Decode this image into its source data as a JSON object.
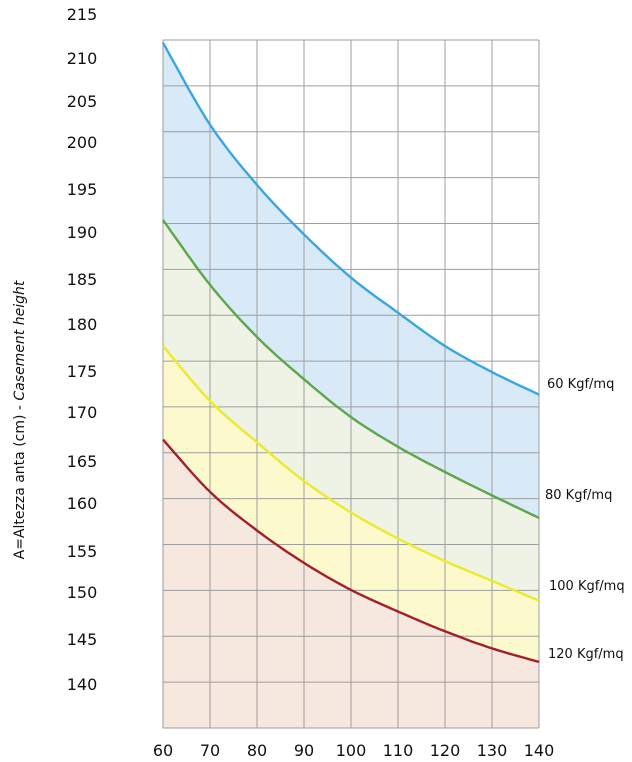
{
  "chart_data": {
    "type": "area",
    "title": "",
    "xlabel": "",
    "ylabel": {
      "main": "A=Altezza anta (cm) - ",
      "italic": "Casement height"
    },
    "xlim": [
      60,
      140
    ],
    "ylim": [
      215,
      130
    ],
    "x_ticks": [
      "60",
      "70",
      "80",
      "90",
      "100",
      "110",
      "120",
      "130",
      "140"
    ],
    "y_ticks": [
      "215",
      "210",
      "205",
      "200",
      "195",
      "190",
      "185",
      "180",
      "175",
      "170",
      "165",
      "160",
      "155",
      "150",
      "145",
      "140"
    ],
    "grid": true,
    "x": [
      60,
      70,
      80,
      90,
      100,
      110,
      120,
      130,
      140
    ],
    "series": [
      {
        "name": "60 Kgf/mq",
        "line_color": "#3aa6e0",
        "fill_color": "#d8e9f8",
        "values": [
          212.2,
          203.1,
          196.4,
          190.9,
          186.1,
          182.2,
          178.5,
          175.6,
          173.1
        ]
      },
      {
        "name": "80 Kgf/mq",
        "line_color": "#5ea64a",
        "fill_color": "#eef3e6",
        "values": [
          192.5,
          185.3,
          179.5,
          174.8,
          170.6,
          167.3,
          164.5,
          161.9,
          159.4
        ]
      },
      {
        "name": "100 Kgf/mq",
        "line_color": "#ecea2a",
        "fill_color": "#fcfacd",
        "values": [
          178.5,
          172.4,
          167.8,
          163.5,
          160.0,
          157.1,
          154.6,
          152.4,
          150.2
        ]
      },
      {
        "name": "120 Kgf/mq",
        "line_color": "#a31f2c",
        "fill_color": "#f6e7df",
        "values": [
          168.1,
          162.3,
          158.0,
          154.4,
          151.4,
          149.0,
          146.8,
          144.9,
          143.4
        ]
      }
    ]
  }
}
